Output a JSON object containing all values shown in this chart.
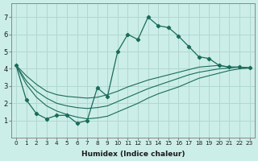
{
  "xlabel": "Humidex (Indice chaleur)",
  "ylabel": "",
  "background_color": "#cceee8",
  "grid_color": "#b0d8d0",
  "line_color": "#1a6b5a",
  "xlim": [
    -0.5,
    23.5
  ],
  "ylim": [
    0,
    7.8
  ],
  "xticks": [
    0,
    1,
    2,
    3,
    4,
    5,
    6,
    7,
    8,
    9,
    10,
    11,
    12,
    13,
    14,
    15,
    16,
    17,
    18,
    19,
    20,
    21,
    22,
    23
  ],
  "yticks": [
    1,
    2,
    3,
    4,
    5,
    6,
    7
  ],
  "series": [
    {
      "x": [
        0,
        1,
        2,
        3,
        4,
        5,
        6,
        7,
        8,
        9,
        10,
        11,
        12,
        13,
        14,
        15,
        16,
        17,
        18,
        19,
        20,
        21,
        22,
        23
      ],
      "y": [
        4.2,
        2.2,
        1.4,
        1.1,
        1.3,
        1.3,
        0.85,
        1.0,
        2.9,
        2.4,
        5.0,
        6.0,
        5.7,
        7.0,
        6.5,
        6.4,
        5.9,
        5.3,
        4.7,
        4.6,
        4.2,
        4.1,
        4.1,
        4.05
      ],
      "marker": true
    },
    {
      "x": [
        0,
        1,
        2,
        3,
        4,
        5,
        6,
        7,
        8,
        9,
        10,
        11,
        12,
        13,
        14,
        15,
        16,
        17,
        18,
        19,
        20,
        21,
        22,
        23
      ],
      "y": [
        4.2,
        3.6,
        3.1,
        2.7,
        2.5,
        2.4,
        2.35,
        2.3,
        2.35,
        2.5,
        2.7,
        2.95,
        3.15,
        3.35,
        3.5,
        3.65,
        3.8,
        3.95,
        4.1,
        4.15,
        4.2,
        4.1,
        4.1,
        4.05
      ],
      "marker": false
    },
    {
      "x": [
        0,
        1,
        2,
        3,
        4,
        5,
        6,
        7,
        8,
        9,
        10,
        11,
        12,
        13,
        14,
        15,
        16,
        17,
        18,
        19,
        20,
        21,
        22,
        23
      ],
      "y": [
        4.2,
        3.3,
        2.7,
        2.3,
        2.0,
        1.85,
        1.75,
        1.7,
        1.75,
        1.85,
        2.1,
        2.35,
        2.6,
        2.85,
        3.05,
        3.25,
        3.45,
        3.65,
        3.8,
        3.9,
        4.0,
        4.05,
        4.1,
        4.05
      ],
      "marker": false
    },
    {
      "x": [
        0,
        1,
        2,
        3,
        4,
        5,
        6,
        7,
        8,
        9,
        10,
        11,
        12,
        13,
        14,
        15,
        16,
        17,
        18,
        19,
        20,
        21,
        22,
        23
      ],
      "y": [
        4.2,
        3.1,
        2.35,
        1.85,
        1.55,
        1.35,
        1.2,
        1.1,
        1.15,
        1.25,
        1.5,
        1.75,
        2.0,
        2.3,
        2.55,
        2.75,
        2.95,
        3.2,
        3.45,
        3.6,
        3.75,
        3.9,
        4.0,
        4.05
      ],
      "marker": false
    }
  ]
}
